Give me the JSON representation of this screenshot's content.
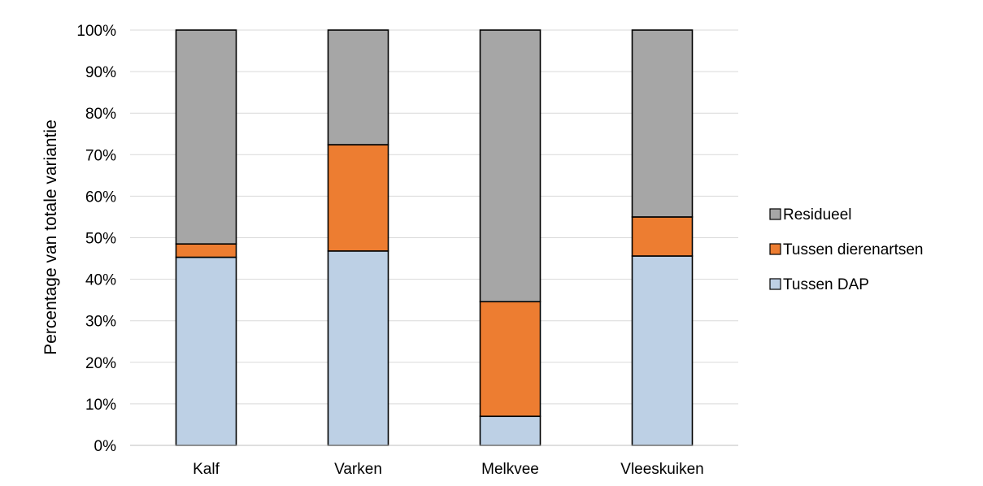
{
  "chart_data": {
    "type": "bar",
    "stacked": true,
    "normalized_percent": true,
    "title": "",
    "xlabel": "",
    "ylabel": "Percentage van totale variantie",
    "ylim": [
      0,
      100
    ],
    "yticks": [
      "0%",
      "10%",
      "20%",
      "30%",
      "40%",
      "50%",
      "60%",
      "70%",
      "80%",
      "90%",
      "100%"
    ],
    "grid": true,
    "legend_position": "right",
    "categories": [
      "Kalf",
      "Varken",
      "Melkvee",
      "Vleeskuiken"
    ],
    "series": [
      {
        "name": "Tussen DAP",
        "color": "#bdd0e5",
        "values": [
          45.3,
          46.8,
          7.0,
          45.6
        ]
      },
      {
        "name": "Tussen dierenartsen",
        "color": "#ed7d31",
        "values": [
          3.2,
          25.6,
          27.6,
          9.4
        ]
      },
      {
        "name": "Residueel",
        "color": "#a6a6a6",
        "values": [
          51.5,
          27.6,
          65.4,
          45.0
        ]
      }
    ],
    "legend_order": [
      "Residueel",
      "Tussen dierenartsen",
      "Tussen DAP"
    ]
  }
}
